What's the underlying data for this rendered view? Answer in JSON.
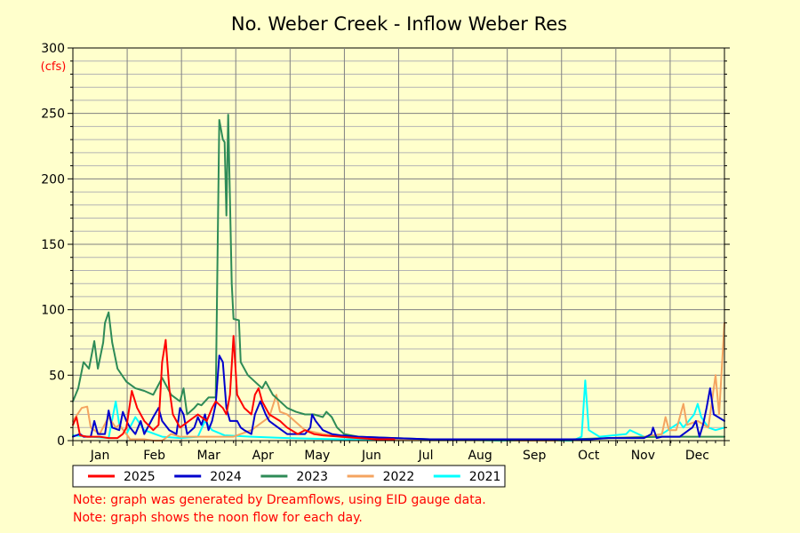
{
  "chart_data": {
    "type": "line",
    "title": "No. Weber Creek - Inflow Weber Res",
    "ylabel": "(cfs)",
    "ylim": [
      0,
      300
    ],
    "yticks": [
      0,
      50,
      100,
      150,
      200,
      250,
      300
    ],
    "x_categories": [
      "Jan",
      "Feb",
      "Mar",
      "Apr",
      "May",
      "Jun",
      "Jul",
      "Aug",
      "Sep",
      "Oct",
      "Nov",
      "Dec"
    ],
    "grid": true,
    "legend_position": "bottom-left",
    "series": [
      {
        "name": "2021",
        "color": "#00ffff",
        "points": [
          [
            0,
            4
          ],
          [
            10,
            3
          ],
          [
            20,
            2
          ],
          [
            24,
            30
          ],
          [
            26,
            12
          ],
          [
            30,
            5
          ],
          [
            35,
            18
          ],
          [
            40,
            8
          ],
          [
            50,
            3
          ],
          [
            60,
            2
          ],
          [
            70,
            3
          ],
          [
            74,
            15
          ],
          [
            78,
            8
          ],
          [
            85,
            4
          ],
          [
            100,
            3
          ],
          [
            120,
            2
          ],
          [
            150,
            1
          ],
          [
            200,
            1
          ],
          [
            240,
            0
          ],
          [
            280,
            0
          ],
          [
            285,
            3
          ],
          [
            287,
            46
          ],
          [
            289,
            8
          ],
          [
            295,
            3
          ],
          [
            310,
            5
          ],
          [
            312,
            8
          ],
          [
            320,
            3
          ],
          [
            330,
            5
          ],
          [
            340,
            14
          ],
          [
            342,
            10
          ],
          [
            348,
            20
          ],
          [
            350,
            28
          ],
          [
            352,
            18
          ],
          [
            356,
            10
          ],
          [
            360,
            8
          ],
          [
            365,
            10
          ]
        ]
      },
      {
        "name": "2022",
        "color": "#f4a460",
        "points": [
          [
            0,
            15
          ],
          [
            5,
            25
          ],
          [
            8,
            26
          ],
          [
            10,
            10
          ],
          [
            15,
            5
          ],
          [
            20,
            18
          ],
          [
            24,
            10
          ],
          [
            26,
            12
          ],
          [
            30,
            5
          ],
          [
            32,
            1
          ],
          [
            40,
            1
          ],
          [
            45,
            0
          ],
          [
            50,
            0
          ],
          [
            55,
            5
          ],
          [
            60,
            3
          ],
          [
            70,
            3
          ],
          [
            80,
            3
          ],
          [
            90,
            3
          ],
          [
            100,
            8
          ],
          [
            105,
            13
          ],
          [
            110,
            18
          ],
          [
            114,
            35
          ],
          [
            116,
            22
          ],
          [
            120,
            20
          ],
          [
            130,
            8
          ],
          [
            140,
            5
          ],
          [
            150,
            3
          ],
          [
            160,
            2
          ],
          [
            180,
            1
          ],
          [
            200,
            1
          ],
          [
            220,
            1
          ],
          [
            250,
            0
          ],
          [
            270,
            0
          ],
          [
            300,
            2
          ],
          [
            320,
            3
          ],
          [
            330,
            5
          ],
          [
            332,
            18
          ],
          [
            334,
            8
          ],
          [
            338,
            8
          ],
          [
            342,
            28
          ],
          [
            344,
            12
          ],
          [
            350,
            15
          ],
          [
            356,
            10
          ],
          [
            360,
            50
          ],
          [
            362,
            20
          ],
          [
            365,
            90
          ]
        ]
      },
      {
        "name": "2023",
        "color": "#2e8b57",
        "points": [
          [
            0,
            30
          ],
          [
            3,
            40
          ],
          [
            6,
            60
          ],
          [
            9,
            55
          ],
          [
            12,
            76
          ],
          [
            14,
            55
          ],
          [
            17,
            75
          ],
          [
            18,
            90
          ],
          [
            20,
            98
          ],
          [
            22,
            75
          ],
          [
            25,
            55
          ],
          [
            30,
            45
          ],
          [
            35,
            40
          ],
          [
            40,
            38
          ],
          [
            45,
            35
          ],
          [
            50,
            48
          ],
          [
            55,
            35
          ],
          [
            60,
            30
          ],
          [
            62,
            40
          ],
          [
            64,
            20
          ],
          [
            68,
            25
          ],
          [
            70,
            28
          ],
          [
            72,
            27
          ],
          [
            74,
            30
          ],
          [
            76,
            33
          ],
          [
            80,
            33
          ],
          [
            82,
            245
          ],
          [
            84,
            230
          ],
          [
            85,
            228
          ],
          [
            86,
            172
          ],
          [
            87,
            249
          ],
          [
            89,
            120
          ],
          [
            90,
            93
          ],
          [
            93,
            92
          ],
          [
            94,
            60
          ],
          [
            98,
            50
          ],
          [
            102,
            45
          ],
          [
            106,
            40
          ],
          [
            108,
            45
          ],
          [
            112,
            35
          ],
          [
            116,
            30
          ],
          [
            120,
            25
          ],
          [
            125,
            22
          ],
          [
            130,
            20
          ],
          [
            135,
            20
          ],
          [
            140,
            18
          ],
          [
            142,
            22
          ],
          [
            145,
            18
          ],
          [
            148,
            10
          ],
          [
            152,
            5
          ],
          [
            160,
            3
          ],
          [
            180,
            2
          ],
          [
            200,
            1
          ],
          [
            240,
            1
          ],
          [
            280,
            1
          ],
          [
            300,
            2
          ],
          [
            330,
            3
          ],
          [
            350,
            3
          ],
          [
            365,
            3
          ]
        ]
      },
      {
        "name": "2024",
        "color": "#0000cd",
        "points": [
          [
            0,
            3
          ],
          [
            4,
            5
          ],
          [
            6,
            3
          ],
          [
            10,
            3
          ],
          [
            12,
            15
          ],
          [
            14,
            5
          ],
          [
            18,
            5
          ],
          [
            20,
            23
          ],
          [
            22,
            10
          ],
          [
            26,
            8
          ],
          [
            28,
            22
          ],
          [
            30,
            15
          ],
          [
            32,
            10
          ],
          [
            35,
            5
          ],
          [
            38,
            15
          ],
          [
            40,
            5
          ],
          [
            45,
            18
          ],
          [
            48,
            25
          ],
          [
            50,
            15
          ],
          [
            54,
            8
          ],
          [
            58,
            5
          ],
          [
            60,
            25
          ],
          [
            62,
            20
          ],
          [
            64,
            5
          ],
          [
            68,
            10
          ],
          [
            70,
            18
          ],
          [
            72,
            12
          ],
          [
            74,
            20
          ],
          [
            76,
            8
          ],
          [
            78,
            15
          ],
          [
            80,
            28
          ],
          [
            82,
            65
          ],
          [
            84,
            60
          ],
          [
            86,
            25
          ],
          [
            88,
            15
          ],
          [
            92,
            15
          ],
          [
            94,
            10
          ],
          [
            96,
            8
          ],
          [
            100,
            5
          ],
          [
            102,
            20
          ],
          [
            105,
            30
          ],
          [
            108,
            20
          ],
          [
            110,
            15
          ],
          [
            115,
            10
          ],
          [
            120,
            5
          ],
          [
            125,
            5
          ],
          [
            130,
            5
          ],
          [
            133,
            10
          ],
          [
            134,
            20
          ],
          [
            136,
            15
          ],
          [
            140,
            8
          ],
          [
            145,
            5
          ],
          [
            150,
            4
          ],
          [
            160,
            3
          ],
          [
            180,
            2
          ],
          [
            200,
            1
          ],
          [
            240,
            1
          ],
          [
            270,
            1
          ],
          [
            290,
            1
          ],
          [
            300,
            2
          ],
          [
            320,
            2
          ],
          [
            324,
            5
          ],
          [
            325,
            10
          ],
          [
            327,
            2
          ],
          [
            330,
            3
          ],
          [
            340,
            3
          ],
          [
            345,
            8
          ],
          [
            347,
            10
          ],
          [
            349,
            15
          ],
          [
            351,
            3
          ],
          [
            353,
            12
          ],
          [
            355,
            25
          ],
          [
            357,
            40
          ],
          [
            359,
            20
          ],
          [
            365,
            15
          ]
        ]
      },
      {
        "name": "2025",
        "color": "#ff0000",
        "points": [
          [
            0,
            12
          ],
          [
            2,
            18
          ],
          [
            4,
            4
          ],
          [
            8,
            3
          ],
          [
            12,
            3
          ],
          [
            15,
            3
          ],
          [
            20,
            2
          ],
          [
            25,
            2
          ],
          [
            28,
            5
          ],
          [
            30,
            10
          ],
          [
            33,
            38
          ],
          [
            36,
            25
          ],
          [
            40,
            15
          ],
          [
            45,
            8
          ],
          [
            48,
            12
          ],
          [
            50,
            60
          ],
          [
            52,
            77
          ],
          [
            54,
            40
          ],
          [
            56,
            20
          ],
          [
            58,
            15
          ],
          [
            60,
            10
          ],
          [
            65,
            15
          ],
          [
            70,
            20
          ],
          [
            75,
            15
          ],
          [
            78,
            25
          ],
          [
            80,
            30
          ],
          [
            84,
            25
          ],
          [
            86,
            20
          ],
          [
            88,
            35
          ],
          [
            90,
            80
          ],
          [
            92,
            35
          ],
          [
            94,
            30
          ],
          [
            96,
            25
          ],
          [
            100,
            20
          ],
          [
            102,
            35
          ],
          [
            104,
            40
          ],
          [
            106,
            30
          ],
          [
            110,
            20
          ],
          [
            116,
            15
          ],
          [
            120,
            10
          ],
          [
            126,
            5
          ],
          [
            130,
            8
          ],
          [
            135,
            5
          ],
          [
            140,
            4
          ],
          [
            150,
            3
          ],
          [
            160,
            2
          ],
          [
            170,
            1
          ],
          [
            180,
            1
          ]
        ]
      }
    ],
    "notes": [
      "Note: graph was generated by Dreamflows, using EID gauge data.",
      "Note: graph shows the noon flow for each day."
    ]
  }
}
